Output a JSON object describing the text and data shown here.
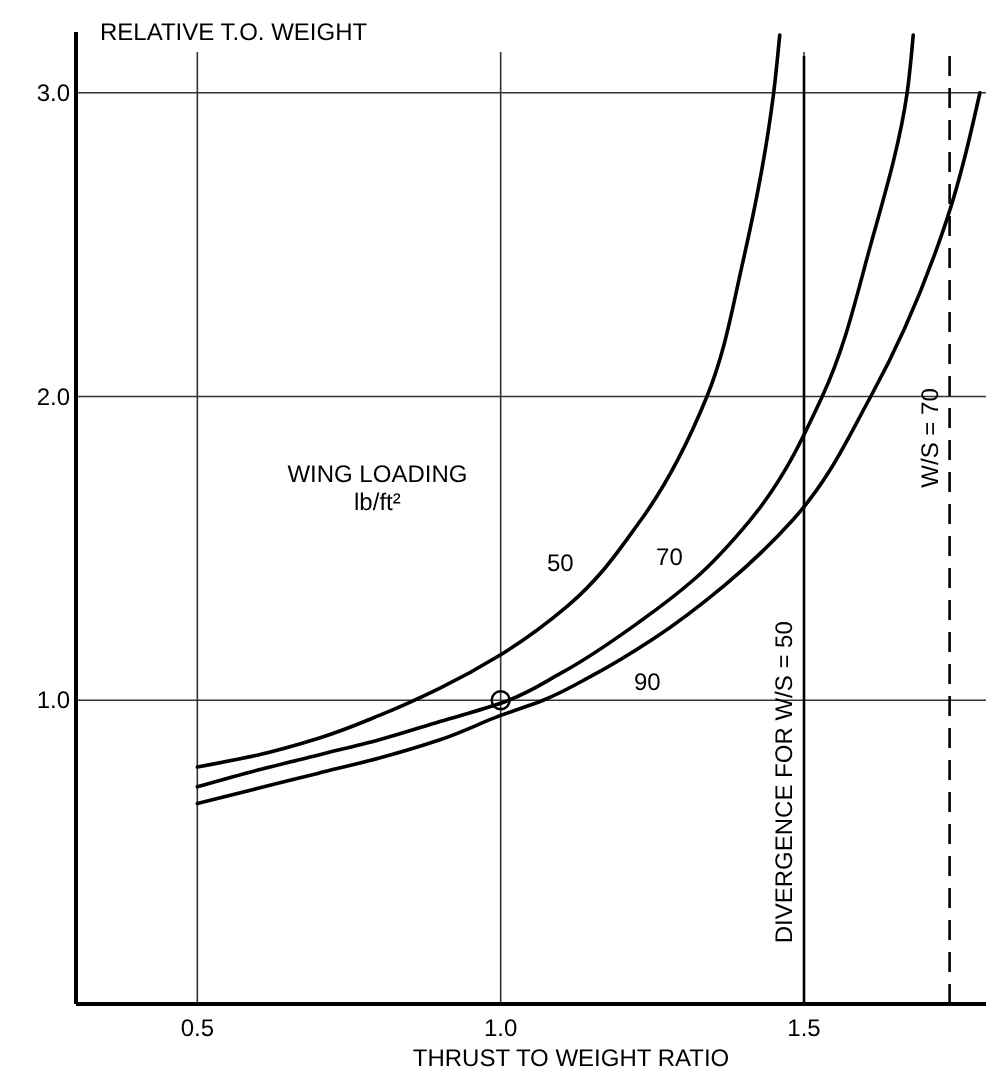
{
  "chart_data": {
    "type": "line",
    "ylabel": "RELATIVE  T.O. WEIGHT",
    "xlabel": "THRUST  TO  WEIGHT  RATIO",
    "legend_title": "WING LOADING\nlb/ft²",
    "xlim": [
      0.3,
      1.8
    ],
    "ylim": [
      0,
      3.2
    ],
    "xticks": [
      0.5,
      {
        "value": 1,
        "label": "1.0"
      },
      1.5
    ],
    "yticks": [
      {
        "value": 1,
        "label": "1.0"
      },
      {
        "value": 2,
        "label": "2.0"
      },
      {
        "value": 3,
        "label": "3.0"
      }
    ],
    "grid": true,
    "legend": false,
    "marker": "none",
    "line_style": "solid",
    "annotations": [
      {
        "text": "DIVERGENCE  FOR  W/S = 50",
        "x": 1.5,
        "y": 0.2
      },
      {
        "text": "W/S = 70",
        "x": 1.74,
        "y": 1.7
      }
    ],
    "series": [
      {
        "name": "50",
        "color": "#000000",
        "x": [
          0.5,
          0.6,
          0.7,
          0.8,
          0.9,
          1.0,
          1.11,
          1.23,
          1.34,
          1.4,
          1.45,
          1.46
        ],
        "values": [
          0.78,
          0.82,
          0.875,
          0.95,
          1.04,
          1.15,
          1.31,
          1.59,
          2.0,
          2.45,
          3.0,
          3.19
        ]
      },
      {
        "name": "70",
        "color": "#000000",
        "x": [
          0.5,
          0.6,
          0.7,
          0.8,
          0.9,
          1.0,
          1.1,
          1.23,
          1.32,
          1.41,
          1.53,
          1.61,
          1.67,
          1.68
        ],
        "values": [
          0.715,
          0.77,
          0.82,
          0.87,
          0.93,
          0.99,
          1.09,
          1.26,
          1.4,
          1.59,
          2.0,
          2.5,
          3.0,
          3.19
        ]
      },
      {
        "name": "90",
        "color": "#000000",
        "x": [
          0.5,
          0.6,
          0.7,
          0.8,
          0.9,
          1.0,
          1.07,
          1.15,
          1.25,
          1.37,
          1.48,
          1.61,
          1.735,
          1.79
        ],
        "values": [
          0.66,
          0.71,
          0.76,
          0.81,
          0.87,
          0.95,
          1.0,
          1.08,
          1.2,
          1.38,
          1.59,
          2.0,
          2.58,
          3.0
        ]
      },
      {
        "type": "scatter",
        "marker": "circle",
        "color": "#000000",
        "x": [
          1.0
        ],
        "values": [
          1.0
        ]
      }
    ],
    "ref_lines": [
      {
        "axis": "x",
        "value": 1.5,
        "line_style": "solid"
      },
      {
        "axis": "x",
        "value": 1.74,
        "line_style": "dashed"
      }
    ]
  }
}
